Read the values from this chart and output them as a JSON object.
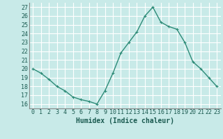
{
  "x": [
    0,
    1,
    2,
    3,
    4,
    5,
    6,
    7,
    8,
    9,
    10,
    11,
    12,
    13,
    14,
    15,
    16,
    17,
    18,
    19,
    20,
    21,
    22,
    23
  ],
  "y": [
    20.0,
    19.5,
    18.8,
    18.0,
    17.5,
    16.8,
    16.5,
    16.3,
    16.0,
    17.5,
    19.5,
    21.8,
    23.0,
    24.2,
    26.0,
    27.0,
    25.3,
    24.8,
    24.5,
    23.0,
    20.8,
    20.0,
    19.0,
    18.0
  ],
  "line_color": "#2d8b77",
  "marker": "+",
  "marker_size": 3,
  "bg_color": "#c8eae8",
  "grid_color": "#b0d8d4",
  "grid_major_color": "#ffffff",
  "xlabel": "Humidex (Indice chaleur)",
  "xlabel_fontsize": 7,
  "ylabel_ticks": [
    16,
    17,
    18,
    19,
    20,
    21,
    22,
    23,
    24,
    25,
    26,
    27
  ],
  "xlim": [
    -0.5,
    23.5
  ],
  "ylim": [
    15.5,
    27.5
  ],
  "tick_fontsize": 6,
  "line_width": 1.0
}
